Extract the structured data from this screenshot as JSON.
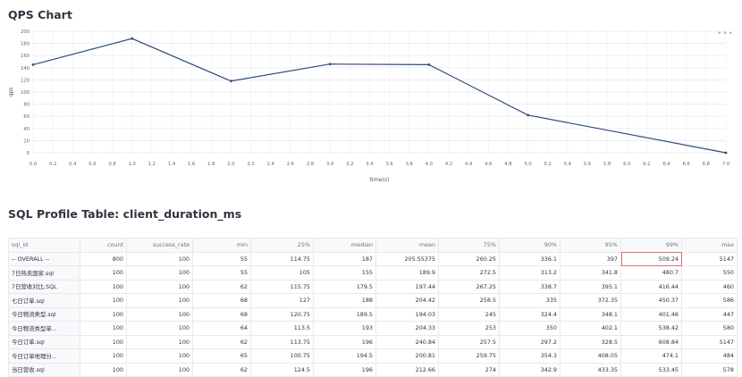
{
  "qps_chart": {
    "title": "QPS Chart",
    "menu_icon": "more-horizontal-icon"
  },
  "chart_data": {
    "type": "line",
    "x": [
      0.0,
      1.0,
      2.0,
      3.0,
      4.0,
      5.0,
      7.0
    ],
    "series": [
      {
        "values": [
          145,
          188,
          118,
          146,
          145,
          62,
          0
        ]
      }
    ],
    "xlabel": "time(s)",
    "ylabel": "qps",
    "xlim": [
      0,
      7
    ],
    "ylim": [
      0,
      200
    ],
    "x_ticks": [
      "0.0",
      "0.2",
      "0.4",
      "0.6",
      "0.8",
      "1.0",
      "1.2",
      "1.4",
      "1.6",
      "1.8",
      "2.0",
      "2.2",
      "2.4",
      "2.6",
      "2.8",
      "3.0",
      "3.2",
      "3.4",
      "3.6",
      "3.8",
      "4.0",
      "4.2",
      "4.4",
      "4.6",
      "4.8",
      "5.0",
      "5.2",
      "5.4",
      "5.6",
      "5.8",
      "6.0",
      "6.2",
      "6.4",
      "6.6",
      "6.8",
      "7.0"
    ],
    "y_ticks": [
      "0",
      "20",
      "40",
      "60",
      "80",
      "100",
      "120",
      "140",
      "160",
      "180",
      "200"
    ],
    "grid": true,
    "line_color": "#2f4b7c"
  },
  "sql_profile": {
    "title": "SQL Profile Table: client_duration_ms",
    "columns": [
      "sql_id",
      "count",
      "success_rate",
      "min",
      "25%",
      "median",
      "mean",
      "75%",
      "90%",
      "95%",
      "99%",
      "max"
    ],
    "rows": [
      [
        "-- OVERALL --",
        "800",
        "100",
        "55",
        "114.75",
        "187",
        "205.55375",
        "260.25",
        "336.1",
        "397",
        "509.24",
        "5147"
      ],
      [
        "7日热卖国家.sql",
        "100",
        "100",
        "55",
        "105",
        "155",
        "189.9",
        "272.5",
        "313.2",
        "341.8",
        "480.7",
        "550"
      ],
      [
        "7日营收对比.SQL",
        "100",
        "100",
        "62",
        "115.75",
        "179.5",
        "197.44",
        "267.25",
        "338.7",
        "395.1",
        "416.44",
        "460"
      ],
      [
        "七日订单.sql",
        "100",
        "100",
        "68",
        "127",
        "188",
        "204.42",
        "258.5",
        "335",
        "372.35",
        "450.37",
        "586"
      ],
      [
        "今日物流类型.sql",
        "100",
        "100",
        "68",
        "120.75",
        "189.5",
        "194.03",
        "245",
        "324.4",
        "348.1",
        "401.46",
        "447"
      ],
      [
        "今日物流类型单...",
        "100",
        "100",
        "64",
        "113.5",
        "193",
        "204.33",
        "253",
        "350",
        "402.1",
        "538.42",
        "580"
      ],
      [
        "今日订单.sql",
        "100",
        "100",
        "62",
        "113.75",
        "196",
        "240.84",
        "257.5",
        "297.2",
        "328.5",
        "608.84",
        "5147"
      ],
      [
        "今日订单地理分...",
        "100",
        "100",
        "65",
        "100.75",
        "194.5",
        "200.81",
        "259.75",
        "354.3",
        "408.05",
        "474.1",
        "484"
      ],
      [
        "当日营收.sql",
        "100",
        "100",
        "62",
        "124.5",
        "196",
        "212.66",
        "274",
        "342.9",
        "433.35",
        "533.45",
        "578"
      ]
    ]
  }
}
